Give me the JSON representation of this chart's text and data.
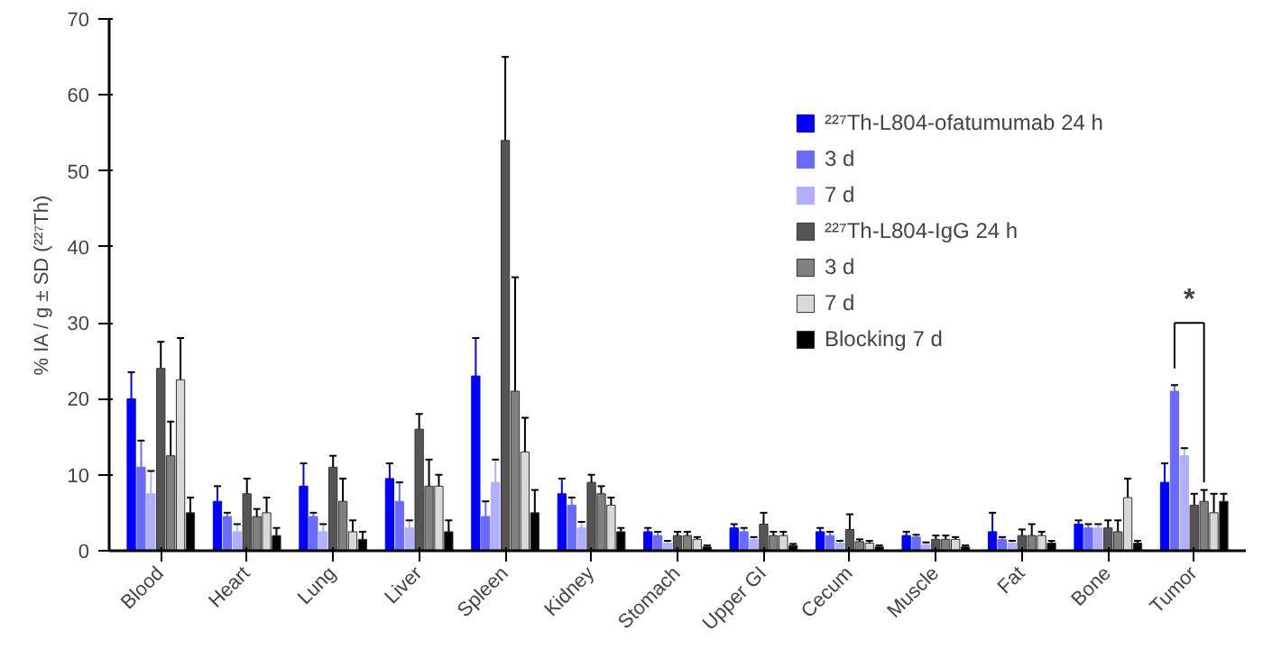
{
  "chart_data": {
    "type": "bar",
    "ylabel": "% IA / g ± SD (²²⁷Th)",
    "categories": [
      "Blood",
      "Heart",
      "Lung",
      "Liver",
      "Spleen",
      "Kidney",
      "Stomach",
      "Upper GI",
      "Cecum",
      "Muscle",
      "Fat",
      "Bone",
      "Tumor"
    ],
    "ylim": [
      0,
      70
    ],
    "yticks": [
      0,
      10,
      20,
      30,
      40,
      50,
      60,
      70
    ],
    "grid": false,
    "legend": "top right",
    "annotations": [
      "*"
    ],
    "series": [
      {
        "name": "²²⁷Th-L804-ofatumumab 24 h",
        "color": "#0000ff",
        "values": [
          20,
          6.5,
          8.5,
          9.5,
          23,
          7.5,
          2.5,
          3,
          2.5,
          2,
          2.5,
          3.5,
          9
        ],
        "errors": [
          3.5,
          2,
          3,
          2,
          5,
          2,
          0.5,
          0.5,
          0.5,
          0.5,
          2.5,
          0.5,
          2.5
        ]
      },
      {
        "name": "3 d",
        "color": "#6a6aff",
        "values": [
          11,
          4.5,
          4.5,
          6.5,
          4.5,
          6,
          2,
          2.5,
          2,
          1.8,
          1.5,
          3,
          21
        ],
        "errors": [
          3.5,
          0.5,
          0.5,
          2.5,
          2,
          1,
          0.5,
          0.5,
          0.5,
          0.3,
          0.3,
          0.5,
          0.8
        ]
      },
      {
        "name": "7 d",
        "color": "#b0b0ff",
        "values": [
          7.5,
          2.5,
          2.5,
          3,
          9,
          3,
          1,
          1.5,
          1,
          0.8,
          1,
          3,
          12.5
        ],
        "errors": [
          3,
          1,
          1,
          1,
          3,
          0.8,
          0.3,
          0.3,
          0.3,
          0.3,
          0.3,
          0.5,
          1
        ]
      },
      {
        "name": "²²⁷Th-L804-IgG 24 h",
        "color": "#555555",
        "values": [
          24,
          7.5,
          11,
          16,
          54,
          9,
          2,
          3.5,
          2.8,
          1.5,
          2,
          3,
          6
        ],
        "errors": [
          3.5,
          2,
          1.5,
          2,
          11,
          1,
          0.5,
          1.5,
          2,
          0.5,
          0.8,
          1,
          1.5
        ]
      },
      {
        "name": "3 d",
        "color": "#808080",
        "values": [
          12.5,
          4.5,
          6.5,
          8.5,
          21,
          7.5,
          2,
          2,
          1.2,
          1.5,
          2,
          2.5,
          6.5
        ],
        "errors": [
          4.5,
          1,
          3,
          3.5,
          15,
          1,
          0.5,
          0.5,
          0.3,
          0.5,
          1.5,
          1.5,
          1.5
        ]
      },
      {
        "name": "7 d",
        "color": "#d8d8d8",
        "values": [
          22.5,
          5,
          2.5,
          8.5,
          13,
          6,
          1.5,
          2,
          1,
          1.5,
          2,
          7,
          5
        ],
        "errors": [
          5.5,
          2,
          1.5,
          1.5,
          4.5,
          1,
          0.3,
          0.5,
          0.3,
          0.3,
          0.5,
          2.5,
          2.5
        ]
      },
      {
        "name": "Blocking 7 d",
        "color": "#000000",
        "values": [
          5,
          2,
          1.5,
          2.5,
          5,
          2.5,
          0.5,
          0.7,
          0.5,
          0.5,
          1,
          1,
          6.5
        ],
        "errors": [
          2,
          1,
          1,
          1.5,
          3,
          0.5,
          0.2,
          0.2,
          0.2,
          0.2,
          0.3,
          0.3,
          1
        ]
      }
    ]
  }
}
